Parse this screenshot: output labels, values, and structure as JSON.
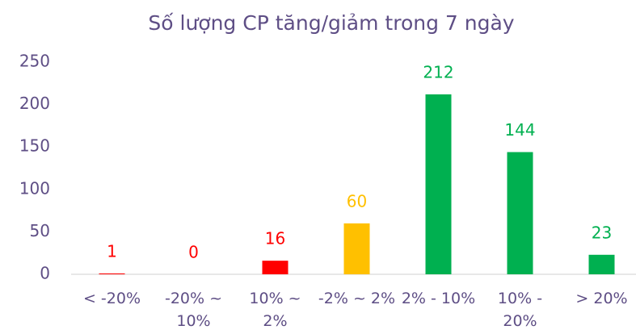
{
  "chart_data": {
    "type": "bar",
    "title": "Số lượng CP tăng/giảm trong 7 ngày",
    "categories": [
      "< -20%",
      "-20% ~ 10%",
      "10% ~ 2%",
      "-2% ~ 2%",
      "2% - 10%",
      "10% - 20%",
      "> 20%"
    ],
    "values": [
      1,
      0,
      16,
      60,
      212,
      144,
      23
    ],
    "colors": [
      "#ff0000",
      "#ff0000",
      "#ff0000",
      "#ffc000",
      "#00b050",
      "#00b050",
      "#00b050"
    ],
    "ylim": [
      0,
      250
    ],
    "yticks": [
      0,
      50,
      100,
      150,
      200,
      250
    ],
    "grid": false
  }
}
